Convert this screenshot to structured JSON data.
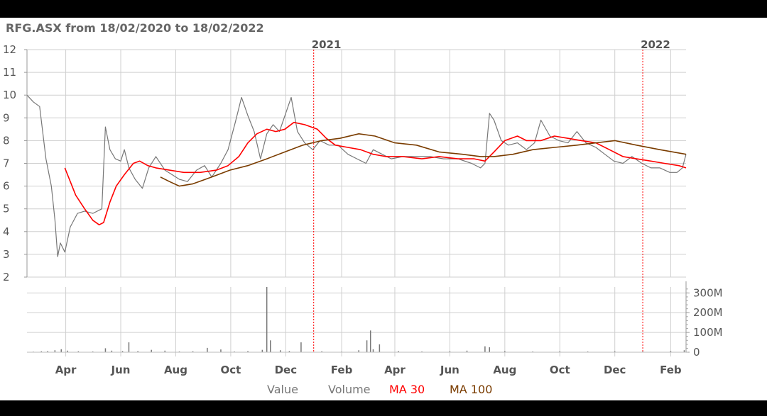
{
  "chart_data": {
    "type": "line",
    "title": "RFG.ASX from 18/02/2020 to 18/02/2022",
    "ylim": [
      2,
      12
    ],
    "y_ticks": [
      "2",
      "3",
      "4",
      "5",
      "6",
      "7",
      "8",
      "9",
      "10",
      "11",
      "12"
    ],
    "volume_ticks": [
      "0",
      "100M",
      "200M",
      "300M"
    ],
    "volume_ylim": [
      0,
      330
    ],
    "x_range": [
      "2020-02-18",
      "2022-02-18"
    ],
    "x_ticks": [
      {
        "label": "Apr",
        "date": "2020-04-01"
      },
      {
        "label": "Jun",
        "date": "2020-06-01"
      },
      {
        "label": "Aug",
        "date": "2020-08-01"
      },
      {
        "label": "Oct",
        "date": "2020-10-01"
      },
      {
        "label": "Dec",
        "date": "2020-12-01"
      },
      {
        "label": "Feb",
        "date": "2021-02-01"
      },
      {
        "label": "Apr",
        "date": "2021-04-01"
      },
      {
        "label": "Jun",
        "date": "2021-06-01"
      },
      {
        "label": "Aug",
        "date": "2021-08-01"
      },
      {
        "label": "Oct",
        "date": "2021-10-01"
      },
      {
        "label": "Dec",
        "date": "2021-12-01"
      },
      {
        "label": "Feb",
        "date": "2022-02-01"
      }
    ],
    "year_markers": [
      {
        "label": "2021",
        "date": "2021-01-01"
      },
      {
        "label": "2022",
        "date": "2022-01-01"
      }
    ],
    "legend": [
      "Value",
      "Volume",
      "MA 30",
      "MA 100"
    ],
    "legend_placement": "bottom",
    "grid": true,
    "colors": {
      "value": "#777777",
      "volume": "#777777",
      "ma30": "#ff0000",
      "ma100": "#7a3c00",
      "year_marker": "#ff0000"
    },
    "series": [
      {
        "name": "Value",
        "points": [
          [
            "2020-02-18",
            10.0
          ],
          [
            "2020-02-25",
            9.7
          ],
          [
            "2020-03-03",
            9.5
          ],
          [
            "2020-03-10",
            7.2
          ],
          [
            "2020-03-16",
            6.0
          ],
          [
            "2020-03-20",
            4.5
          ],
          [
            "2020-03-23",
            2.9
          ],
          [
            "2020-03-26",
            3.5
          ],
          [
            "2020-03-31",
            3.1
          ],
          [
            "2020-04-06",
            4.2
          ],
          [
            "2020-04-14",
            4.8
          ],
          [
            "2020-04-22",
            4.9
          ],
          [
            "2020-05-01",
            4.8
          ],
          [
            "2020-05-11",
            5.0
          ],
          [
            "2020-05-15",
            8.6
          ],
          [
            "2020-05-20",
            7.6
          ],
          [
            "2020-05-26",
            7.2
          ],
          [
            "2020-06-01",
            7.1
          ],
          [
            "2020-06-05",
            7.6
          ],
          [
            "2020-06-10",
            6.8
          ],
          [
            "2020-06-17",
            6.3
          ],
          [
            "2020-06-25",
            5.9
          ],
          [
            "2020-07-02",
            6.8
          ],
          [
            "2020-07-10",
            7.3
          ],
          [
            "2020-07-20",
            6.7
          ],
          [
            "2020-07-28",
            6.5
          ],
          [
            "2020-08-05",
            6.3
          ],
          [
            "2020-08-14",
            6.2
          ],
          [
            "2020-08-24",
            6.7
          ],
          [
            "2020-09-02",
            6.9
          ],
          [
            "2020-09-10",
            6.4
          ],
          [
            "2020-09-20",
            7.0
          ],
          [
            "2020-09-28",
            7.6
          ],
          [
            "2020-10-06",
            8.8
          ],
          [
            "2020-10-13",
            9.9
          ],
          [
            "2020-10-20",
            9.1
          ],
          [
            "2020-10-27",
            8.4
          ],
          [
            "2020-11-03",
            7.2
          ],
          [
            "2020-11-10",
            8.3
          ],
          [
            "2020-11-17",
            8.7
          ],
          [
            "2020-11-24",
            8.4
          ],
          [
            "2020-12-01",
            9.2
          ],
          [
            "2020-12-07",
            9.9
          ],
          [
            "2020-12-14",
            8.4
          ],
          [
            "2020-12-22",
            7.9
          ],
          [
            "2020-12-31",
            7.6
          ],
          [
            "2021-01-08",
            8.0
          ],
          [
            "2021-01-18",
            7.8
          ],
          [
            "2021-01-28",
            7.8
          ],
          [
            "2021-02-08",
            7.4
          ],
          [
            "2021-02-18",
            7.2
          ],
          [
            "2021-02-28",
            7.0
          ],
          [
            "2021-03-08",
            7.6
          ],
          [
            "2021-03-18",
            7.4
          ],
          [
            "2021-03-28",
            7.2
          ],
          [
            "2021-04-10",
            7.3
          ],
          [
            "2021-04-25",
            7.3
          ],
          [
            "2021-05-10",
            7.3
          ],
          [
            "2021-05-25",
            7.2
          ],
          [
            "2021-06-10",
            7.2
          ],
          [
            "2021-06-25",
            7.0
          ],
          [
            "2021-07-05",
            6.8
          ],
          [
            "2021-07-10",
            7.0
          ],
          [
            "2021-07-15",
            9.2
          ],
          [
            "2021-07-20",
            8.9
          ],
          [
            "2021-07-28",
            8.0
          ],
          [
            "2021-08-05",
            7.8
          ],
          [
            "2021-08-15",
            7.9
          ],
          [
            "2021-08-25",
            7.6
          ],
          [
            "2021-09-03",
            7.9
          ],
          [
            "2021-09-10",
            8.9
          ],
          [
            "2021-09-20",
            8.2
          ],
          [
            "2021-09-30",
            8.0
          ],
          [
            "2021-10-10",
            7.9
          ],
          [
            "2021-10-20",
            8.4
          ],
          [
            "2021-10-30",
            7.9
          ],
          [
            "2021-11-10",
            7.7
          ],
          [
            "2021-11-20",
            7.4
          ],
          [
            "2021-11-30",
            7.1
          ],
          [
            "2021-12-10",
            7.0
          ],
          [
            "2021-12-20",
            7.3
          ],
          [
            "2021-12-31",
            7.0
          ],
          [
            "2022-01-10",
            6.8
          ],
          [
            "2022-01-20",
            6.8
          ],
          [
            "2022-01-31",
            6.6
          ],
          [
            "2022-02-08",
            6.6
          ],
          [
            "2022-02-14",
            6.8
          ],
          [
            "2022-02-18",
            7.4
          ]
        ]
      },
      {
        "name": "MA 30",
        "points": [
          [
            "2020-03-31",
            6.8
          ],
          [
            "2020-04-05",
            6.3
          ],
          [
            "2020-04-12",
            5.6
          ],
          [
            "2020-04-22",
            5.0
          ],
          [
            "2020-05-01",
            4.5
          ],
          [
            "2020-05-08",
            4.3
          ],
          [
            "2020-05-13",
            4.4
          ],
          [
            "2020-05-20",
            5.3
          ],
          [
            "2020-05-27",
            6.0
          ],
          [
            "2020-06-05",
            6.5
          ],
          [
            "2020-06-15",
            7.0
          ],
          [
            "2020-06-22",
            7.1
          ],
          [
            "2020-07-01",
            6.9
          ],
          [
            "2020-07-10",
            6.8
          ],
          [
            "2020-07-25",
            6.7
          ],
          [
            "2020-08-10",
            6.6
          ],
          [
            "2020-08-28",
            6.6
          ],
          [
            "2020-09-15",
            6.7
          ],
          [
            "2020-09-28",
            6.9
          ],
          [
            "2020-10-10",
            7.3
          ],
          [
            "2020-10-20",
            7.9
          ],
          [
            "2020-10-30",
            8.3
          ],
          [
            "2020-11-10",
            8.5
          ],
          [
            "2020-11-20",
            8.4
          ],
          [
            "2020-11-30",
            8.5
          ],
          [
            "2020-12-10",
            8.8
          ],
          [
            "2020-12-22",
            8.7
          ],
          [
            "2021-01-05",
            8.5
          ],
          [
            "2021-01-15",
            8.1
          ],
          [
            "2021-01-25",
            7.8
          ],
          [
            "2021-02-08",
            7.7
          ],
          [
            "2021-02-22",
            7.6
          ],
          [
            "2021-03-08",
            7.4
          ],
          [
            "2021-03-22",
            7.3
          ],
          [
            "2021-04-10",
            7.3
          ],
          [
            "2021-05-01",
            7.2
          ],
          [
            "2021-05-20",
            7.3
          ],
          [
            "2021-06-10",
            7.2
          ],
          [
            "2021-06-28",
            7.2
          ],
          [
            "2021-07-10",
            7.1
          ],
          [
            "2021-07-20",
            7.5
          ],
          [
            "2021-08-01",
            8.0
          ],
          [
            "2021-08-15",
            8.2
          ],
          [
            "2021-08-25",
            8.0
          ],
          [
            "2021-09-10",
            8.0
          ],
          [
            "2021-09-25",
            8.2
          ],
          [
            "2021-10-10",
            8.1
          ],
          [
            "2021-10-25",
            8.0
          ],
          [
            "2021-11-10",
            7.9
          ],
          [
            "2021-11-25",
            7.6
          ],
          [
            "2021-12-10",
            7.3
          ],
          [
            "2021-12-25",
            7.2
          ],
          [
            "2022-01-10",
            7.1
          ],
          [
            "2022-01-25",
            7.0
          ],
          [
            "2022-02-10",
            6.9
          ],
          [
            "2022-02-18",
            6.8
          ]
        ]
      },
      {
        "name": "MA 100",
        "points": [
          [
            "2020-07-15",
            6.4
          ],
          [
            "2020-07-25",
            6.2
          ],
          [
            "2020-08-05",
            6.0
          ],
          [
            "2020-08-20",
            6.1
          ],
          [
            "2020-09-10",
            6.4
          ],
          [
            "2020-09-30",
            6.7
          ],
          [
            "2020-10-20",
            6.9
          ],
          [
            "2020-11-10",
            7.2
          ],
          [
            "2020-11-30",
            7.5
          ],
          [
            "2020-12-20",
            7.8
          ],
          [
            "2021-01-10",
            8.0
          ],
          [
            "2021-01-30",
            8.1
          ],
          [
            "2021-02-20",
            8.3
          ],
          [
            "2021-03-10",
            8.2
          ],
          [
            "2021-04-01",
            7.9
          ],
          [
            "2021-04-25",
            7.8
          ],
          [
            "2021-05-20",
            7.5
          ],
          [
            "2021-06-15",
            7.4
          ],
          [
            "2021-07-05",
            7.3
          ],
          [
            "2021-07-20",
            7.3
          ],
          [
            "2021-08-10",
            7.4
          ],
          [
            "2021-09-01",
            7.6
          ],
          [
            "2021-09-25",
            7.7
          ],
          [
            "2021-10-20",
            7.8
          ],
          [
            "2021-11-10",
            7.9
          ],
          [
            "2021-12-01",
            8.0
          ],
          [
            "2021-12-25",
            7.8
          ],
          [
            "2022-01-20",
            7.6
          ],
          [
            "2022-02-18",
            7.4
          ]
        ]
      }
    ],
    "volume": [
      [
        "2020-02-25",
        3
      ],
      [
        "2020-03-05",
        5
      ],
      [
        "2020-03-12",
        6
      ],
      [
        "2020-03-20",
        10
      ],
      [
        "2020-03-27",
        15
      ],
      [
        "2020-04-03",
        8
      ],
      [
        "2020-04-15",
        5
      ],
      [
        "2020-05-01",
        4
      ],
      [
        "2020-05-15",
        20
      ],
      [
        "2020-05-22",
        8
      ],
      [
        "2020-06-03",
        6
      ],
      [
        "2020-06-10",
        50
      ],
      [
        "2020-06-20",
        6
      ],
      [
        "2020-07-05",
        12
      ],
      [
        "2020-07-20",
        8
      ],
      [
        "2020-08-05",
        4
      ],
      [
        "2020-08-20",
        5
      ],
      [
        "2020-09-05",
        22
      ],
      [
        "2020-09-20",
        14
      ],
      [
        "2020-10-05",
        4
      ],
      [
        "2020-10-20",
        6
      ],
      [
        "2020-11-05",
        12
      ],
      [
        "2020-11-10",
        330
      ],
      [
        "2020-11-14",
        60
      ],
      [
        "2020-11-25",
        10
      ],
      [
        "2020-12-05",
        6
      ],
      [
        "2020-12-18",
        50
      ],
      [
        "2021-01-10",
        5
      ],
      [
        "2021-02-01",
        3
      ],
      [
        "2021-02-20",
        10
      ],
      [
        "2021-03-01",
        60
      ],
      [
        "2021-03-05",
        110
      ],
      [
        "2021-03-08",
        15
      ],
      [
        "2021-03-15",
        40
      ],
      [
        "2021-04-05",
        6
      ],
      [
        "2021-05-01",
        4
      ],
      [
        "2021-06-01",
        5
      ],
      [
        "2021-06-20",
        8
      ],
      [
        "2021-07-10",
        30
      ],
      [
        "2021-07-15",
        25
      ],
      [
        "2021-08-01",
        6
      ],
      [
        "2021-09-01",
        4
      ],
      [
        "2021-10-01",
        5
      ],
      [
        "2021-11-01",
        4
      ],
      [
        "2021-12-01",
        5
      ],
      [
        "2022-01-01",
        4
      ],
      [
        "2022-02-01",
        6
      ],
      [
        "2022-02-16",
        10
      ]
    ]
  }
}
